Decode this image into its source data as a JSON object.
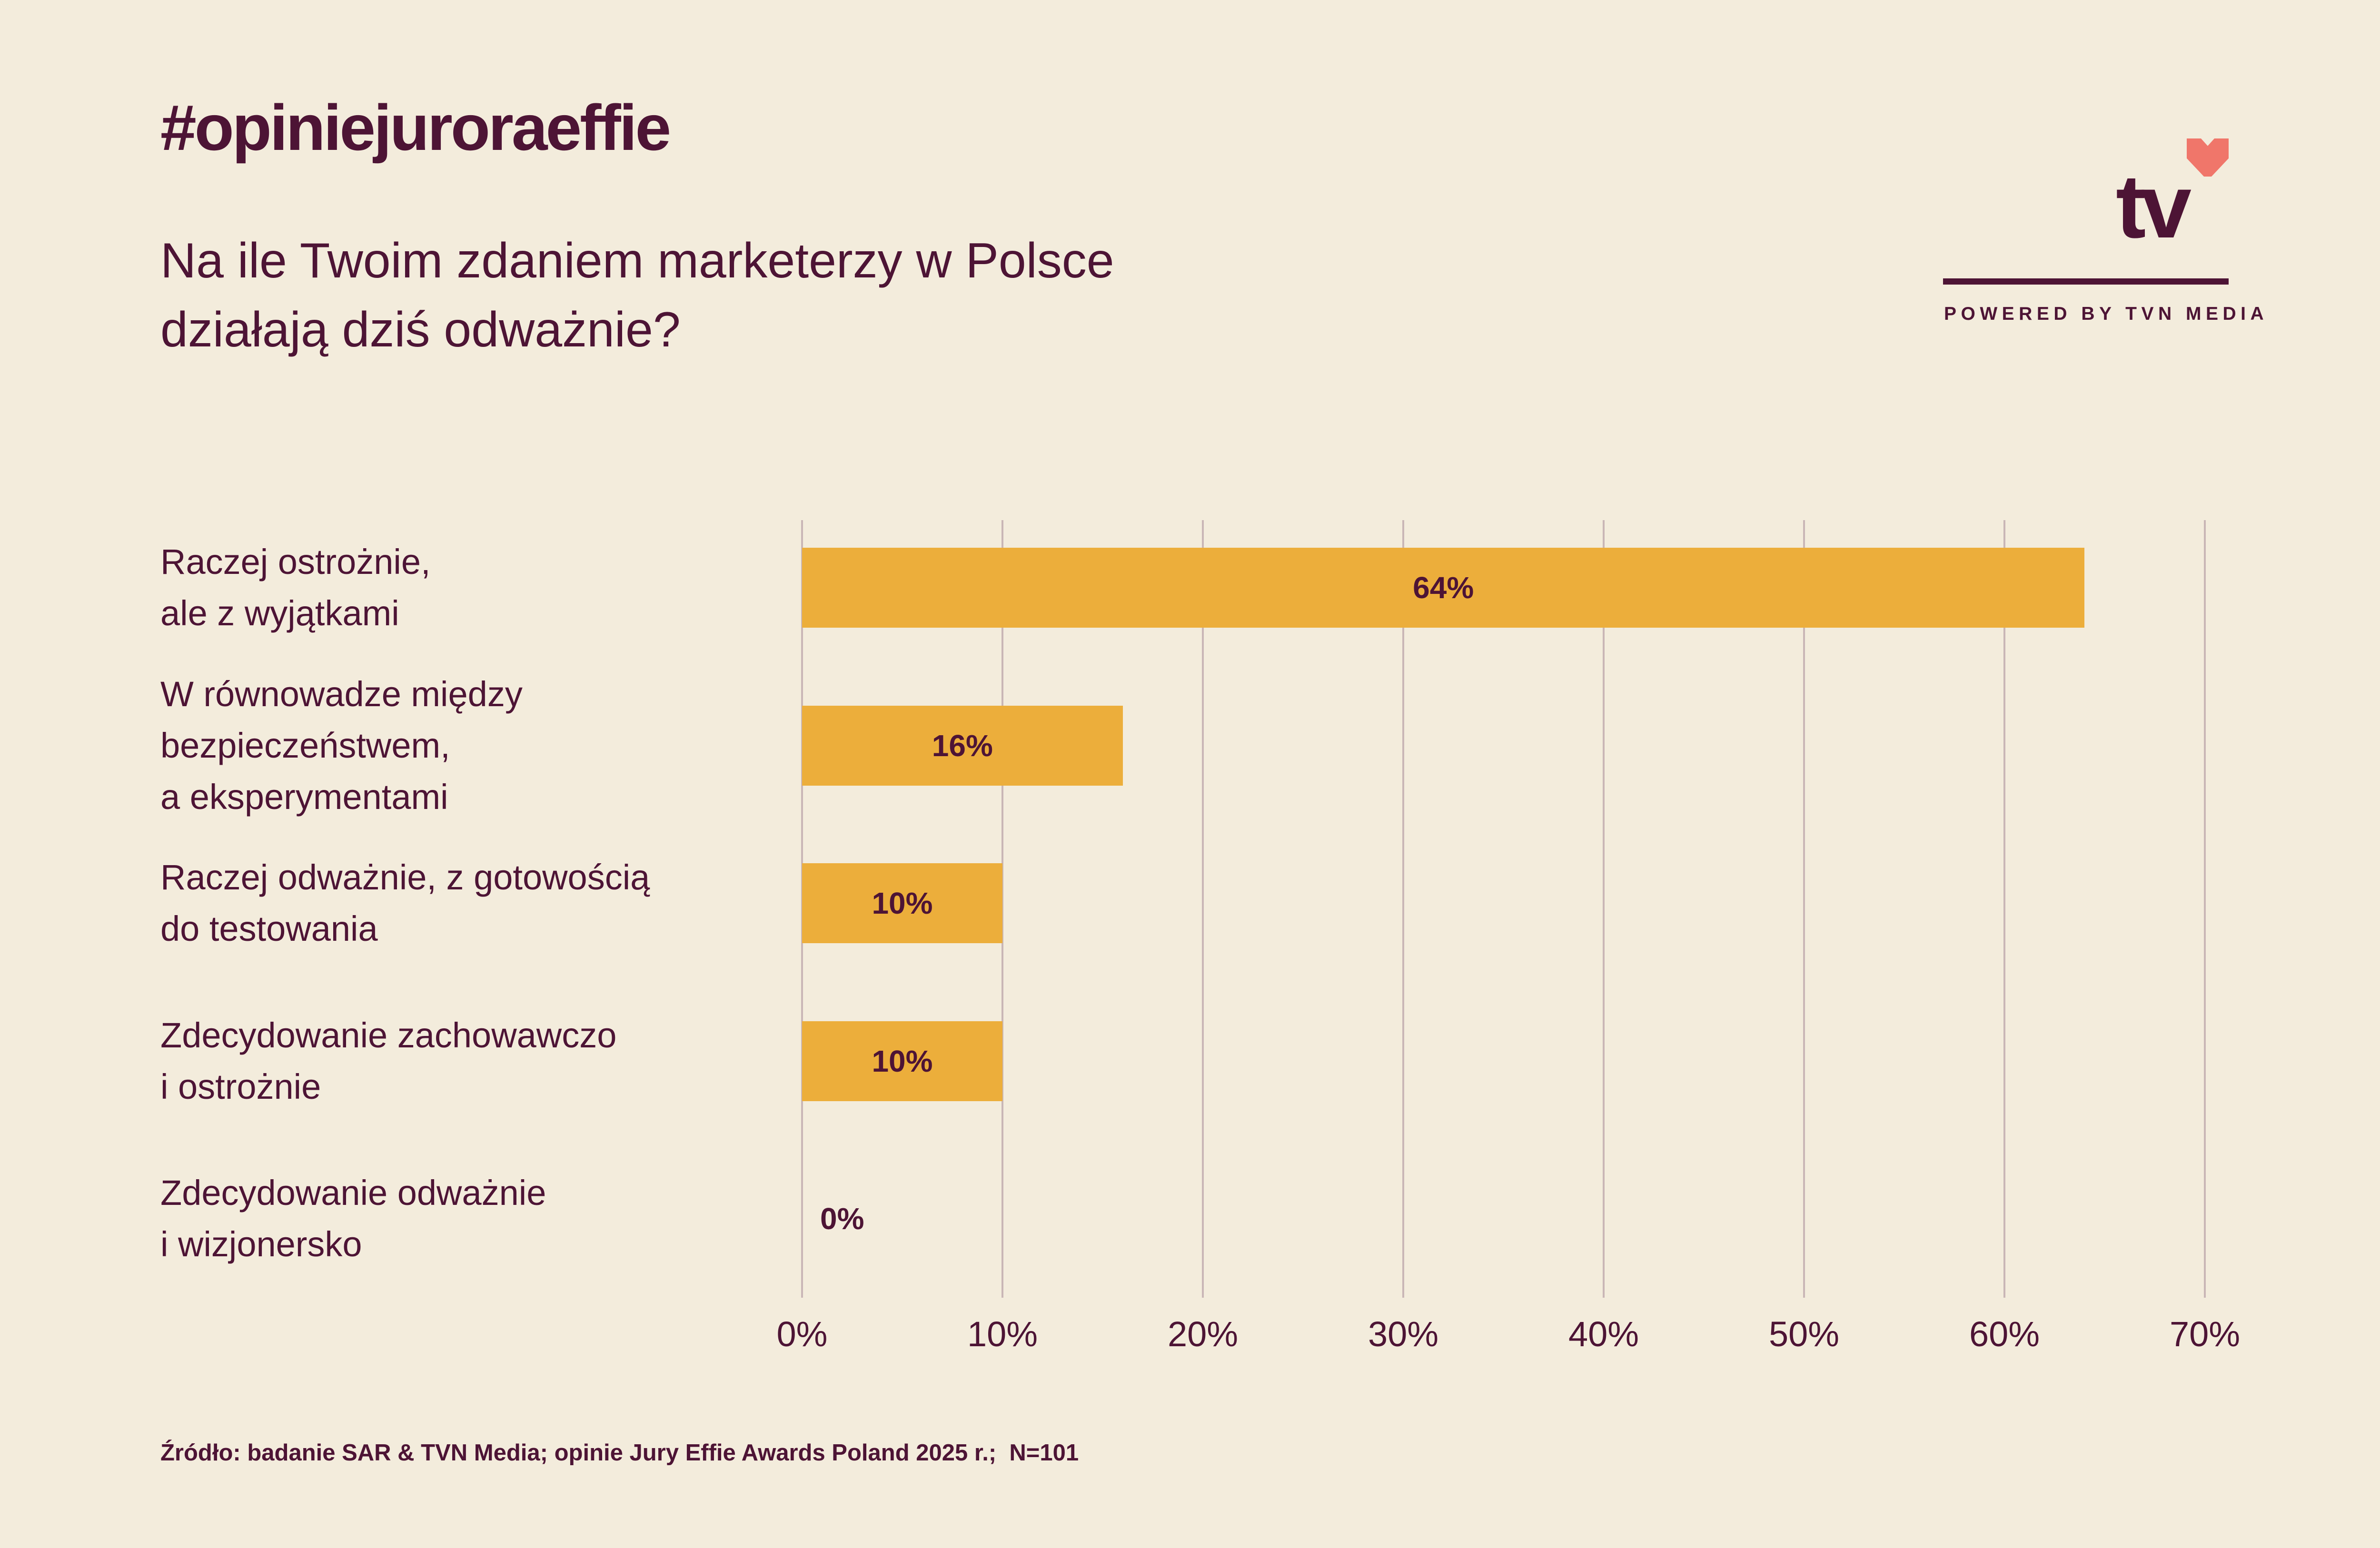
{
  "header": {
    "hashtag": "#opiniejuroraeffie",
    "question_lines": [
      "Na ile Twoim zdaniem marketerzy w Polsce",
      "działają dziś odważnie?"
    ]
  },
  "logo": {
    "wordmark": "tv",
    "tagline": "POWERED BY TVN MEDIA"
  },
  "chart_data": {
    "type": "bar",
    "orientation": "horizontal",
    "title": "Na ile Twoim zdaniem marketerzy w Polsce działają dziś odważnie?",
    "categories": [
      [
        "Raczej ostrożnie,",
        "ale z wyjątkami"
      ],
      [
        "W równowadze między",
        "bezpieczeństwem,",
        "a eksperymentami"
      ],
      [
        "Raczej odważnie, z gotowością",
        "do testowania"
      ],
      [
        "Zdecydowanie zachowawczo",
        "i ostrożnie"
      ],
      [
        "Zdecydowanie odważnie",
        "i wizjonersko"
      ]
    ],
    "values": [
      64,
      16,
      10,
      10,
      0
    ],
    "value_labels": [
      "64%",
      "16%",
      "10%",
      "10%",
      "0%"
    ],
    "x_tick_labels": [
      "0%",
      "10%",
      "20%",
      "30%",
      "40%",
      "50%",
      "60%",
      "70%"
    ],
    "xlim": [
      0,
      70
    ],
    "grid": "vertical-only",
    "legend": null
  },
  "footer": {
    "source": "Źródło: badanie SAR & TVN Media; opinie Jury Effie Awards Poland 2025 r.;  N=101"
  },
  "colors": {
    "background": "#F3ECDC",
    "text": "#4D1435",
    "bar": "#ECAE3B",
    "gridline": "#C9B6B6",
    "heart": "#F0766A"
  }
}
